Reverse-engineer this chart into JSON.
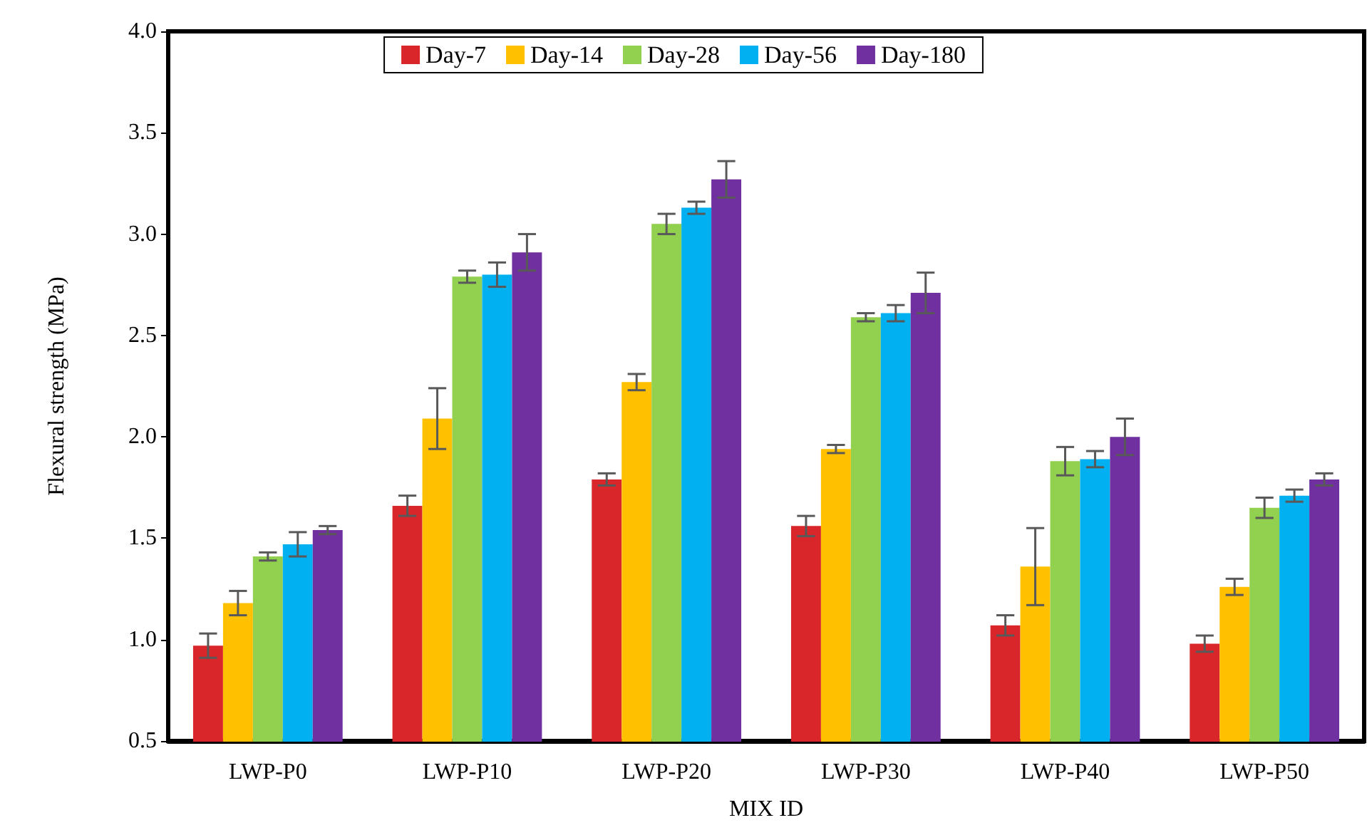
{
  "chart_data": {
    "type": "bar",
    "xlabel": "MIX ID",
    "ylabel": "Flexural strength (MPa)",
    "categories": [
      "LWP-P0",
      "LWP-P10",
      "LWP-P20",
      "LWP-P30",
      "LWP-P40",
      "LWP-P50"
    ],
    "series": [
      {
        "name": "Day-7",
        "color": "#d9262b",
        "values": [
          0.97,
          1.66,
          1.79,
          1.56,
          1.07,
          0.98
        ],
        "errors": [
          0.06,
          0.05,
          0.03,
          0.05,
          0.05,
          0.04
        ]
      },
      {
        "name": "Day-14",
        "color": "#ffc000",
        "values": [
          1.18,
          2.09,
          2.27,
          1.94,
          1.36,
          1.26
        ],
        "errors": [
          0.06,
          0.15,
          0.04,
          0.02,
          0.19,
          0.04
        ]
      },
      {
        "name": "Day-28",
        "color": "#92d050",
        "values": [
          1.41,
          2.79,
          3.05,
          2.59,
          1.88,
          1.65
        ],
        "errors": [
          0.02,
          0.03,
          0.05,
          0.02,
          0.07,
          0.05
        ]
      },
      {
        "name": "Day-56",
        "color": "#00b0f0",
        "values": [
          1.47,
          2.8,
          3.13,
          2.61,
          1.89,
          1.71
        ],
        "errors": [
          0.06,
          0.06,
          0.03,
          0.04,
          0.04,
          0.03
        ]
      },
      {
        "name": "Day-180",
        "color": "#7030a0",
        "values": [
          1.54,
          2.91,
          3.27,
          2.71,
          2.0,
          1.79
        ],
        "errors": [
          0.02,
          0.09,
          0.09,
          0.1,
          0.09,
          0.03
        ]
      }
    ],
    "ylim": [
      0.5,
      4.0
    ],
    "yticks": [
      0.5,
      {
        "value": 1,
        "label": "1.0"
      },
      1.5,
      {
        "value": 2,
        "label": "2.0"
      },
      2.5,
      {
        "value": 3,
        "label": "3.0"
      },
      3.5,
      {
        "value": 4,
        "label": "4.0"
      }
    ],
    "grid": false,
    "legend": "top"
  }
}
